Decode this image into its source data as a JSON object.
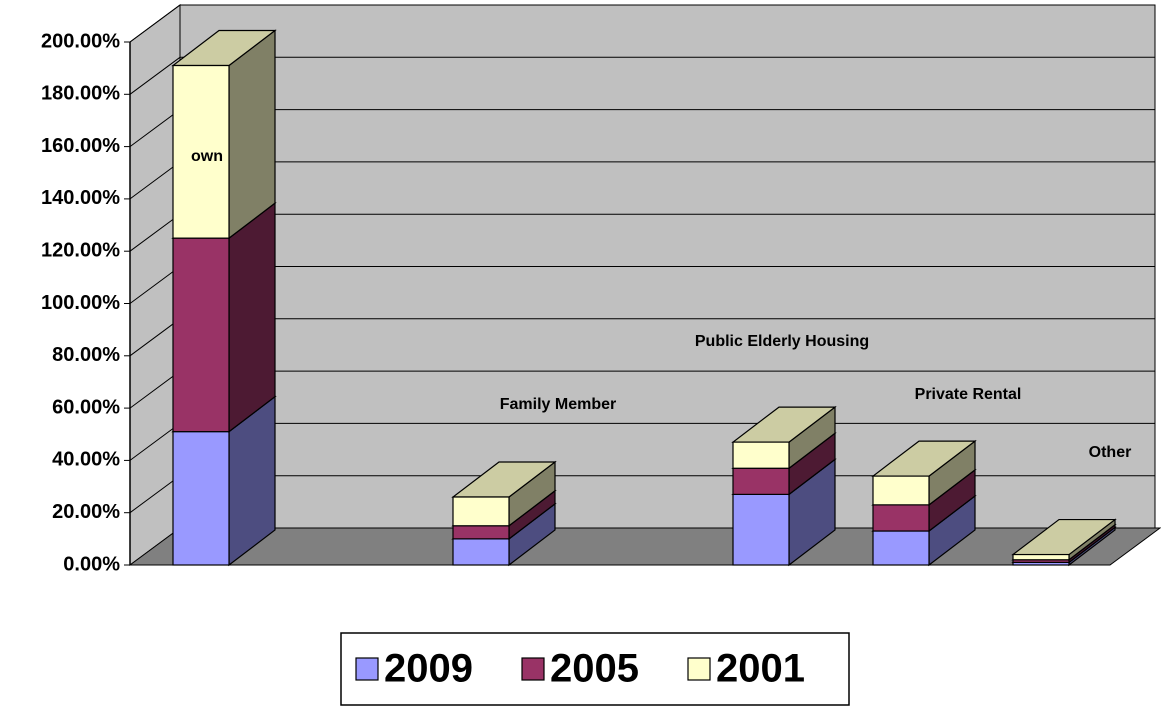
{
  "chart_data": {
    "type": "bar3d_stacked",
    "categories": [
      "own",
      null,
      "Family Member",
      null,
      "Public Elderly Housing",
      "Private Rental",
      "Other"
    ],
    "series": [
      {
        "name": "2009",
        "color": "#9999ff",
        "values": [
          51,
          null,
          10,
          null,
          27,
          13,
          1
        ]
      },
      {
        "name": "2005",
        "color": "#993366",
        "values": [
          74,
          null,
          5,
          null,
          10,
          10,
          1
        ]
      },
      {
        "name": "2001",
        "color": "#ffffcc",
        "values": [
          66,
          null,
          11,
          null,
          10,
          11,
          2
        ]
      }
    ],
    "ylim": [
      0,
      200
    ],
    "yticks": [
      {
        "value": 0,
        "label": "0.00%"
      },
      {
        "value": 20,
        "label": "20.00%"
      },
      {
        "value": 40,
        "label": "40.00%"
      },
      {
        "value": 60,
        "label": "60.00%"
      },
      {
        "value": 80,
        "label": "80.00%"
      },
      {
        "value": 100,
        "label": "100.00%"
      },
      {
        "value": 120,
        "label": "120.00%"
      },
      {
        "value": 140,
        "label": "140.00%"
      },
      {
        "value": 160,
        "label": "160.00%"
      },
      {
        "value": 180,
        "label": "180.00%"
      },
      {
        "value": 200,
        "label": "200.00%"
      }
    ],
    "grid": true,
    "legend": "bottom"
  }
}
